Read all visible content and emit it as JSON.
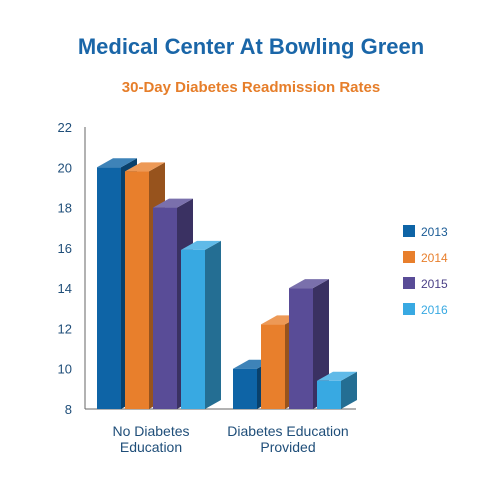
{
  "chart_data": {
    "type": "bar",
    "title": "Medical Center At Bowling Green",
    "subtitle": "30-Day Diabetes Readmission Rates",
    "categories": [
      "No Diabetes\nEducation",
      "Diabetes Education\nProvided"
    ],
    "series": [
      {
        "name": "2013",
        "values": [
          20,
          10
        ]
      },
      {
        "name": "2014",
        "values": [
          19.8,
          12.2
        ]
      },
      {
        "name": "2015",
        "values": [
          18,
          14
        ]
      },
      {
        "name": "2016",
        "values": [
          15.9,
          9.4
        ]
      }
    ],
    "ylim": [
      8,
      22
    ],
    "yticks": [
      "8",
      "10",
      "12",
      "14",
      "16",
      "18",
      "20",
      "22"
    ],
    "grid": false,
    "legend": "right",
    "three_d": true
  },
  "colors": {
    "title": "#1a66a8",
    "subtitle": "#e67e2a",
    "tick_text": "#1f4e79",
    "category_text": "#1f4e79",
    "axis": "#666666",
    "series": [
      "#0e64a6",
      "#e87f2c",
      "#594c97",
      "#38a9e2"
    ],
    "legend_text": [
      "#1a5b95",
      "#e87f2c",
      "#4a3f86",
      "#38a9e2"
    ]
  }
}
